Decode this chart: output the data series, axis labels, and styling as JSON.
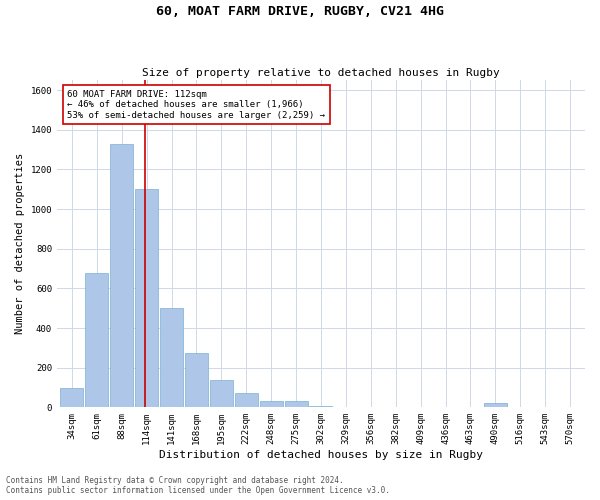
{
  "title": "60, MOAT FARM DRIVE, RUGBY, CV21 4HG",
  "subtitle": "Size of property relative to detached houses in Rugby",
  "xlabel": "Distribution of detached houses by size in Rugby",
  "ylabel": "Number of detached properties",
  "categories": [
    "34sqm",
    "61sqm",
    "88sqm",
    "114sqm",
    "141sqm",
    "168sqm",
    "195sqm",
    "222sqm",
    "248sqm",
    "275sqm",
    "302sqm",
    "329sqm",
    "356sqm",
    "382sqm",
    "409sqm",
    "436sqm",
    "463sqm",
    "490sqm",
    "516sqm",
    "543sqm",
    "570sqm"
  ],
  "values": [
    100,
    680,
    1330,
    1100,
    500,
    275,
    140,
    70,
    30,
    30,
    5,
    0,
    0,
    0,
    0,
    0,
    0,
    20,
    0,
    0,
    0
  ],
  "bar_color": "#aec6e8",
  "bar_edge_color": "#7bafd4",
  "vline_x": 2.92,
  "vline_color": "#cc0000",
  "annotation_text": "60 MOAT FARM DRIVE: 112sqm\n← 46% of detached houses are smaller (1,966)\n53% of semi-detached houses are larger (2,259) →",
  "annotation_box_color": "#ffffff",
  "annotation_border_color": "#cc0000",
  "ylim": [
    0,
    1650
  ],
  "yticks": [
    0,
    200,
    400,
    600,
    800,
    1000,
    1200,
    1400,
    1600
  ],
  "footer_line1": "Contains HM Land Registry data © Crown copyright and database right 2024.",
  "footer_line2": "Contains public sector information licensed under the Open Government Licence v3.0.",
  "bg_color": "#ffffff",
  "grid_color": "#d0d8e8",
  "title_fontsize": 9.5,
  "subtitle_fontsize": 8,
  "axis_label_fontsize": 7.5,
  "tick_fontsize": 6.5,
  "annotation_fontsize": 6.5,
  "footer_fontsize": 5.5
}
